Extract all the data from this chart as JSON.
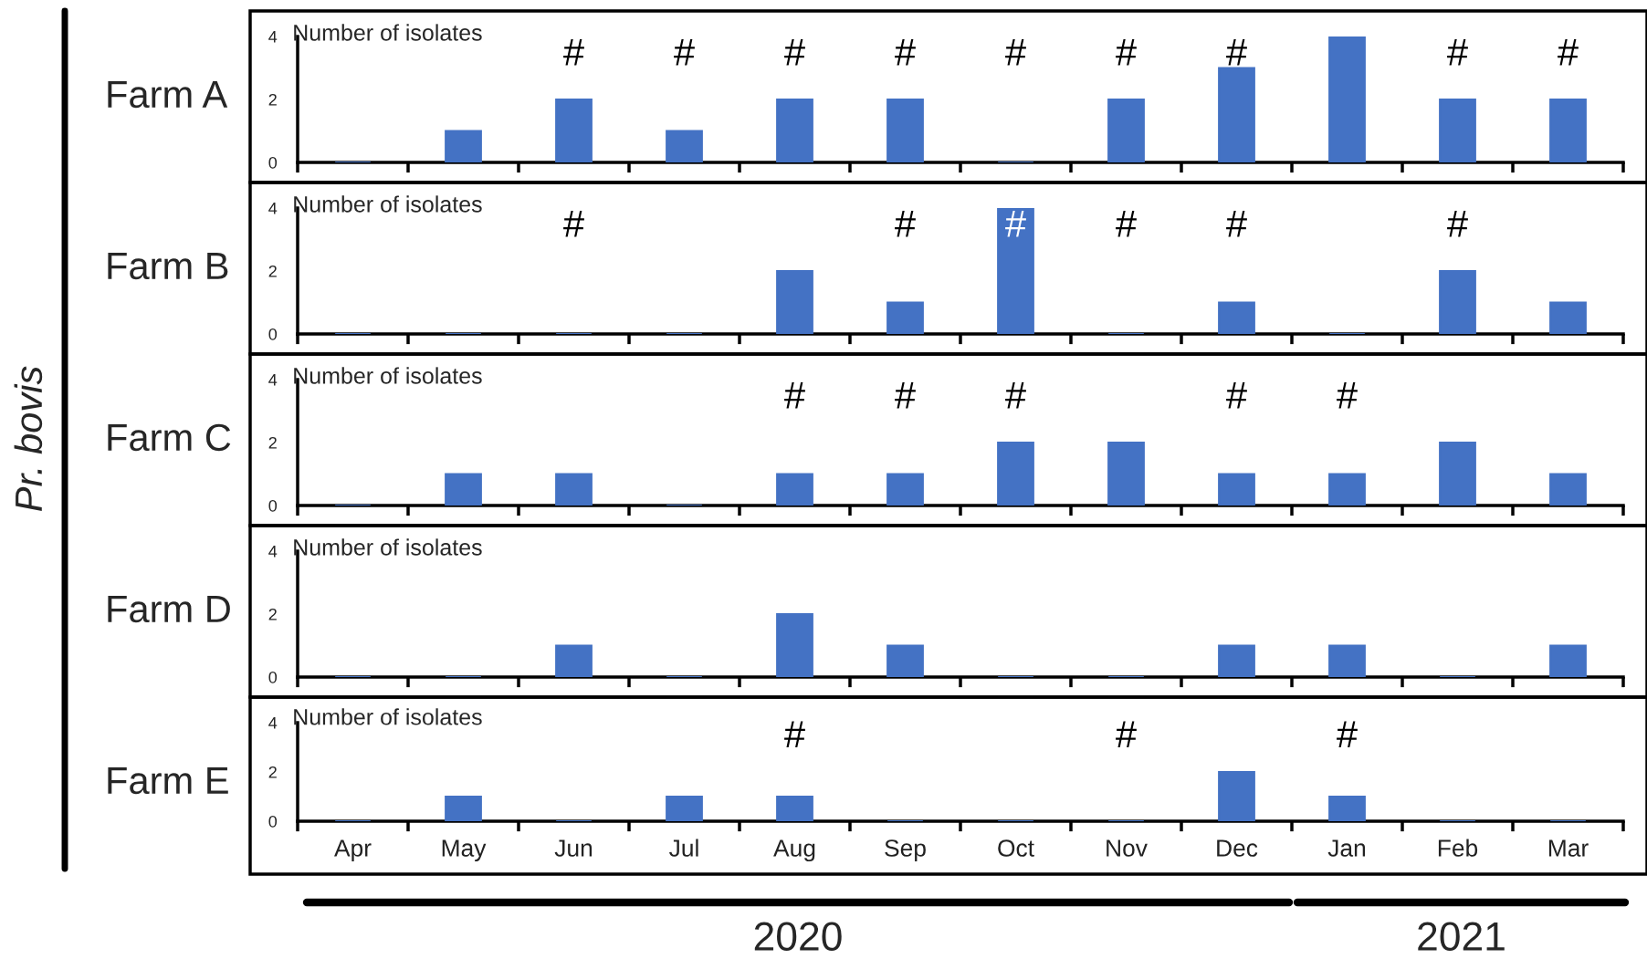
{
  "chart_data": [
    {
      "type": "bar",
      "title": "Farm A",
      "ylabel": "Number of isolates",
      "categories": [
        null,
        null,
        null,
        null,
        null,
        null,
        null,
        null,
        null,
        null,
        null,
        null
      ],
      "values": [
        0,
        1,
        2,
        1,
        2,
        2,
        0,
        2,
        3,
        4,
        2,
        2
      ],
      "value_labels": [
        null,
        null,
        "#",
        "#",
        "#",
        "#",
        "#",
        "#",
        "#",
        null,
        "#",
        "#"
      ],
      "color": "#4472c4",
      "ylim": [
        0,
        4
      ],
      "yticks": [
        0,
        2,
        4
      ],
      "tick_labels": "y",
      "annotations": [
        "Pr. bovis"
      ]
    },
    {
      "type": "bar",
      "title": "Farm B",
      "ylabel": "Number of isolates",
      "categories": [
        null,
        null,
        null,
        null,
        null,
        null,
        null,
        null,
        null,
        null,
        null,
        null
      ],
      "values": [
        0,
        0,
        0,
        0,
        2,
        1,
        4,
        0,
        1,
        0,
        2,
        1
      ],
      "value_labels": [
        null,
        null,
        "#",
        null,
        null,
        "#",
        "#",
        "#",
        "#",
        null,
        "#",
        null
      ],
      "color": "#4472c4",
      "ylim": [
        0,
        4
      ],
      "yticks": [
        0,
        2,
        4
      ],
      "tick_labels": "y"
    },
    {
      "type": "bar",
      "title": "Farm C",
      "ylabel": "Number of isolates",
      "categories": [
        null,
        null,
        null,
        null,
        null,
        null,
        null,
        null,
        null,
        null,
        null,
        null
      ],
      "values": [
        0,
        1,
        1,
        0,
        1,
        1,
        2,
        2,
        1,
        1,
        2,
        1
      ],
      "value_labels": [
        null,
        null,
        null,
        null,
        "#",
        "#",
        "#",
        null,
        "#",
        "#",
        null,
        null
      ],
      "color": "#4472c4",
      "ylim": [
        0,
        4
      ],
      "yticks": [
        0,
        2,
        4
      ],
      "tick_labels": "y"
    },
    {
      "type": "bar",
      "title": "Farm D",
      "ylabel": "Number of isolates",
      "categories": [
        null,
        null,
        null,
        null,
        null,
        null,
        null,
        null,
        null,
        null,
        null,
        null
      ],
      "values": [
        0,
        0,
        1,
        0,
        2,
        1,
        0,
        0,
        1,
        1,
        0,
        1
      ],
      "color": "#4472c4",
      "ylim": [
        0,
        4
      ],
      "yticks": [
        0,
        2,
        4
      ],
      "tick_labels": "y"
    },
    {
      "type": "bar",
      "title": "Farm E",
      "ylabel": "Number of isolates",
      "categories": [
        "Apr",
        "May",
        "Jun",
        "Jul",
        "Aug",
        "Sep",
        "Oct",
        "Nov",
        "Dec",
        "Jan",
        "Feb",
        "Mar"
      ],
      "values": [
        0,
        1,
        0,
        1,
        1,
        0,
        0,
        0,
        2,
        1,
        0,
        0
      ],
      "value_labels": [
        null,
        null,
        null,
        null,
        "#",
        null,
        null,
        "#",
        null,
        "#",
        null,
        null
      ],
      "color": "#4472c4",
      "ylim": [
        0,
        4
      ],
      "yticks": [
        0,
        2,
        4
      ],
      "annotations": [
        "2020",
        "2021"
      ]
    }
  ]
}
